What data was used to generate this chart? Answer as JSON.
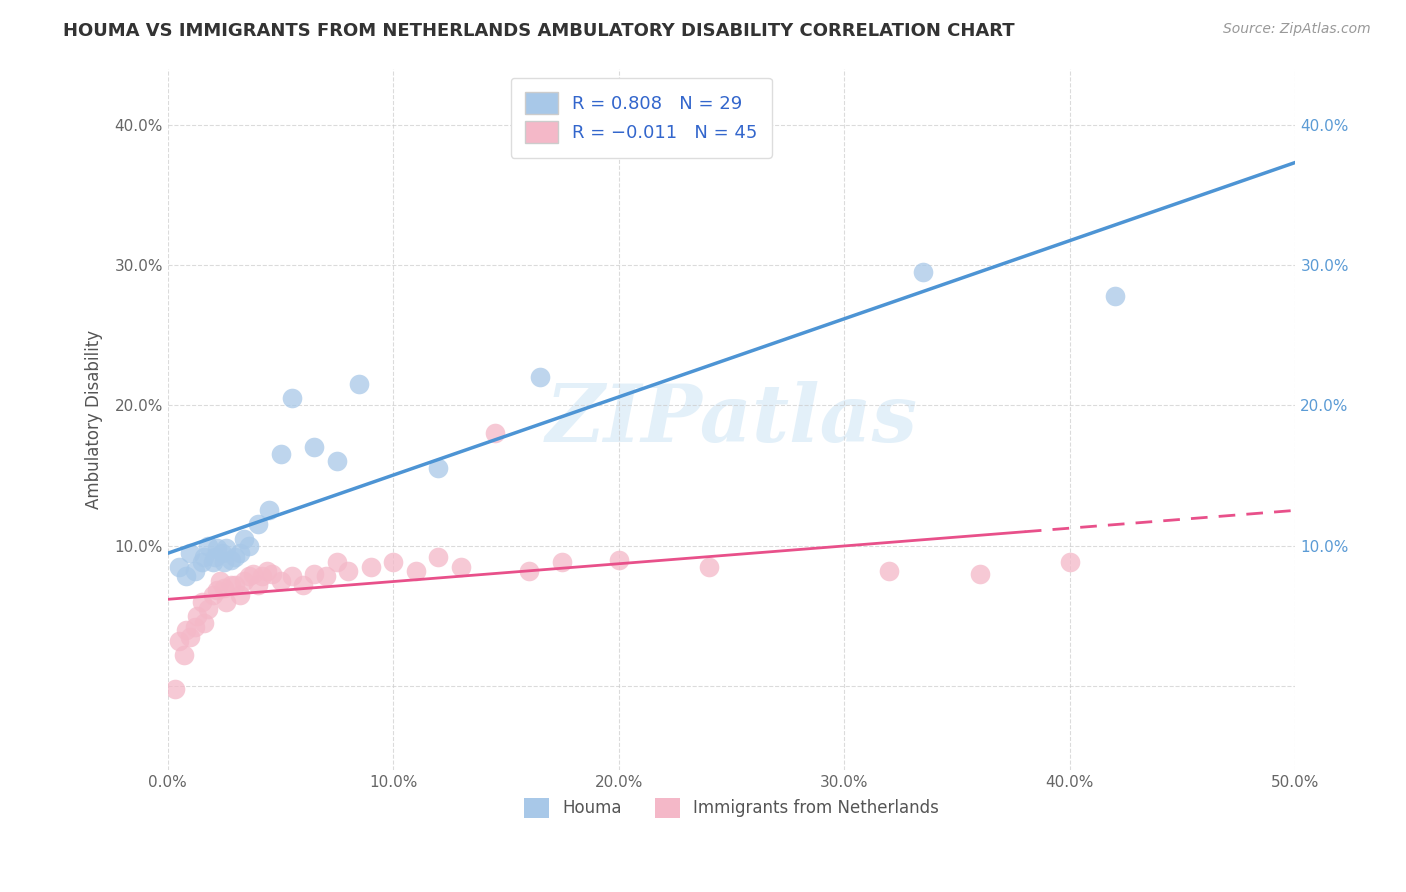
{
  "title": "HOUMA VS IMMIGRANTS FROM NETHERLANDS AMBULATORY DISABILITY CORRELATION CHART",
  "source": "Source: ZipAtlas.com",
  "ylabel": "Ambulatory Disability",
  "watermark": "ZIPatlas",
  "legend_label1": "Houma",
  "legend_label2": "Immigrants from Netherlands",
  "r1": 0.808,
  "n1": 29,
  "r2": -0.011,
  "n2": 45,
  "xlim": [
    0.0,
    0.5
  ],
  "ylim": [
    -0.06,
    0.44
  ],
  "xticks": [
    0.0,
    0.1,
    0.2,
    0.3,
    0.4,
    0.5
  ],
  "yticks": [
    0.0,
    0.1,
    0.2,
    0.3,
    0.4
  ],
  "xtick_labels": [
    "0.0%",
    "10.0%",
    "20.0%",
    "30.0%",
    "40.0%",
    "50.0%"
  ],
  "ytick_labels": [
    "",
    "10.0%",
    "20.0%",
    "30.0%",
    "40.0%"
  ],
  "color_blue": "#a8c8e8",
  "color_pink": "#f4b8c8",
  "color_line_blue": "#4d94d4",
  "color_line_pink": "#e8508a",
  "background_color": "#ffffff",
  "grid_color": "#cccccc",
  "houma_x": [
    0.005,
    0.008,
    0.01,
    0.012,
    0.015,
    0.016,
    0.018,
    0.02,
    0.021,
    0.022,
    0.024,
    0.025,
    0.026,
    0.028,
    0.03,
    0.032,
    0.034,
    0.036,
    0.04,
    0.045,
    0.05,
    0.055,
    0.065,
    0.075,
    0.085,
    0.12,
    0.165,
    0.335,
    0.42
  ],
  "houma_y": [
    0.085,
    0.078,
    0.095,
    0.082,
    0.088,
    0.092,
    0.1,
    0.088,
    0.092,
    0.098,
    0.095,
    0.088,
    0.098,
    0.09,
    0.092,
    0.095,
    0.105,
    0.1,
    0.115,
    0.125,
    0.165,
    0.205,
    0.17,
    0.16,
    0.215,
    0.155,
    0.22,
    0.295,
    0.278
  ],
  "netherlands_x": [
    0.003,
    0.005,
    0.007,
    0.008,
    0.01,
    0.012,
    0.013,
    0.015,
    0.016,
    0.018,
    0.02,
    0.022,
    0.023,
    0.025,
    0.026,
    0.028,
    0.03,
    0.032,
    0.034,
    0.036,
    0.038,
    0.04,
    0.042,
    0.044,
    0.046,
    0.05,
    0.055,
    0.06,
    0.065,
    0.07,
    0.075,
    0.08,
    0.09,
    0.1,
    0.11,
    0.12,
    0.13,
    0.145,
    0.16,
    0.175,
    0.2,
    0.24,
    0.32,
    0.36,
    0.4
  ],
  "netherlands_y": [
    -0.002,
    0.032,
    0.022,
    0.04,
    0.035,
    0.042,
    0.05,
    0.06,
    0.045,
    0.055,
    0.065,
    0.068,
    0.075,
    0.07,
    0.06,
    0.072,
    0.072,
    0.065,
    0.075,
    0.078,
    0.08,
    0.072,
    0.078,
    0.082,
    0.08,
    0.075,
    0.078,
    0.072,
    0.08,
    0.078,
    0.088,
    0.082,
    0.085,
    0.088,
    0.082,
    0.092,
    0.085,
    0.18,
    0.082,
    0.088,
    0.09,
    0.085,
    0.082,
    0.08,
    0.088
  ],
  "netherlands_extra_x": [
    0.24
  ],
  "netherlands_extra_y": [
    0.088
  ],
  "pink_solid_xlim": [
    0.0,
    0.38
  ],
  "pink_dashed_xlim": [
    0.38,
    0.5
  ]
}
